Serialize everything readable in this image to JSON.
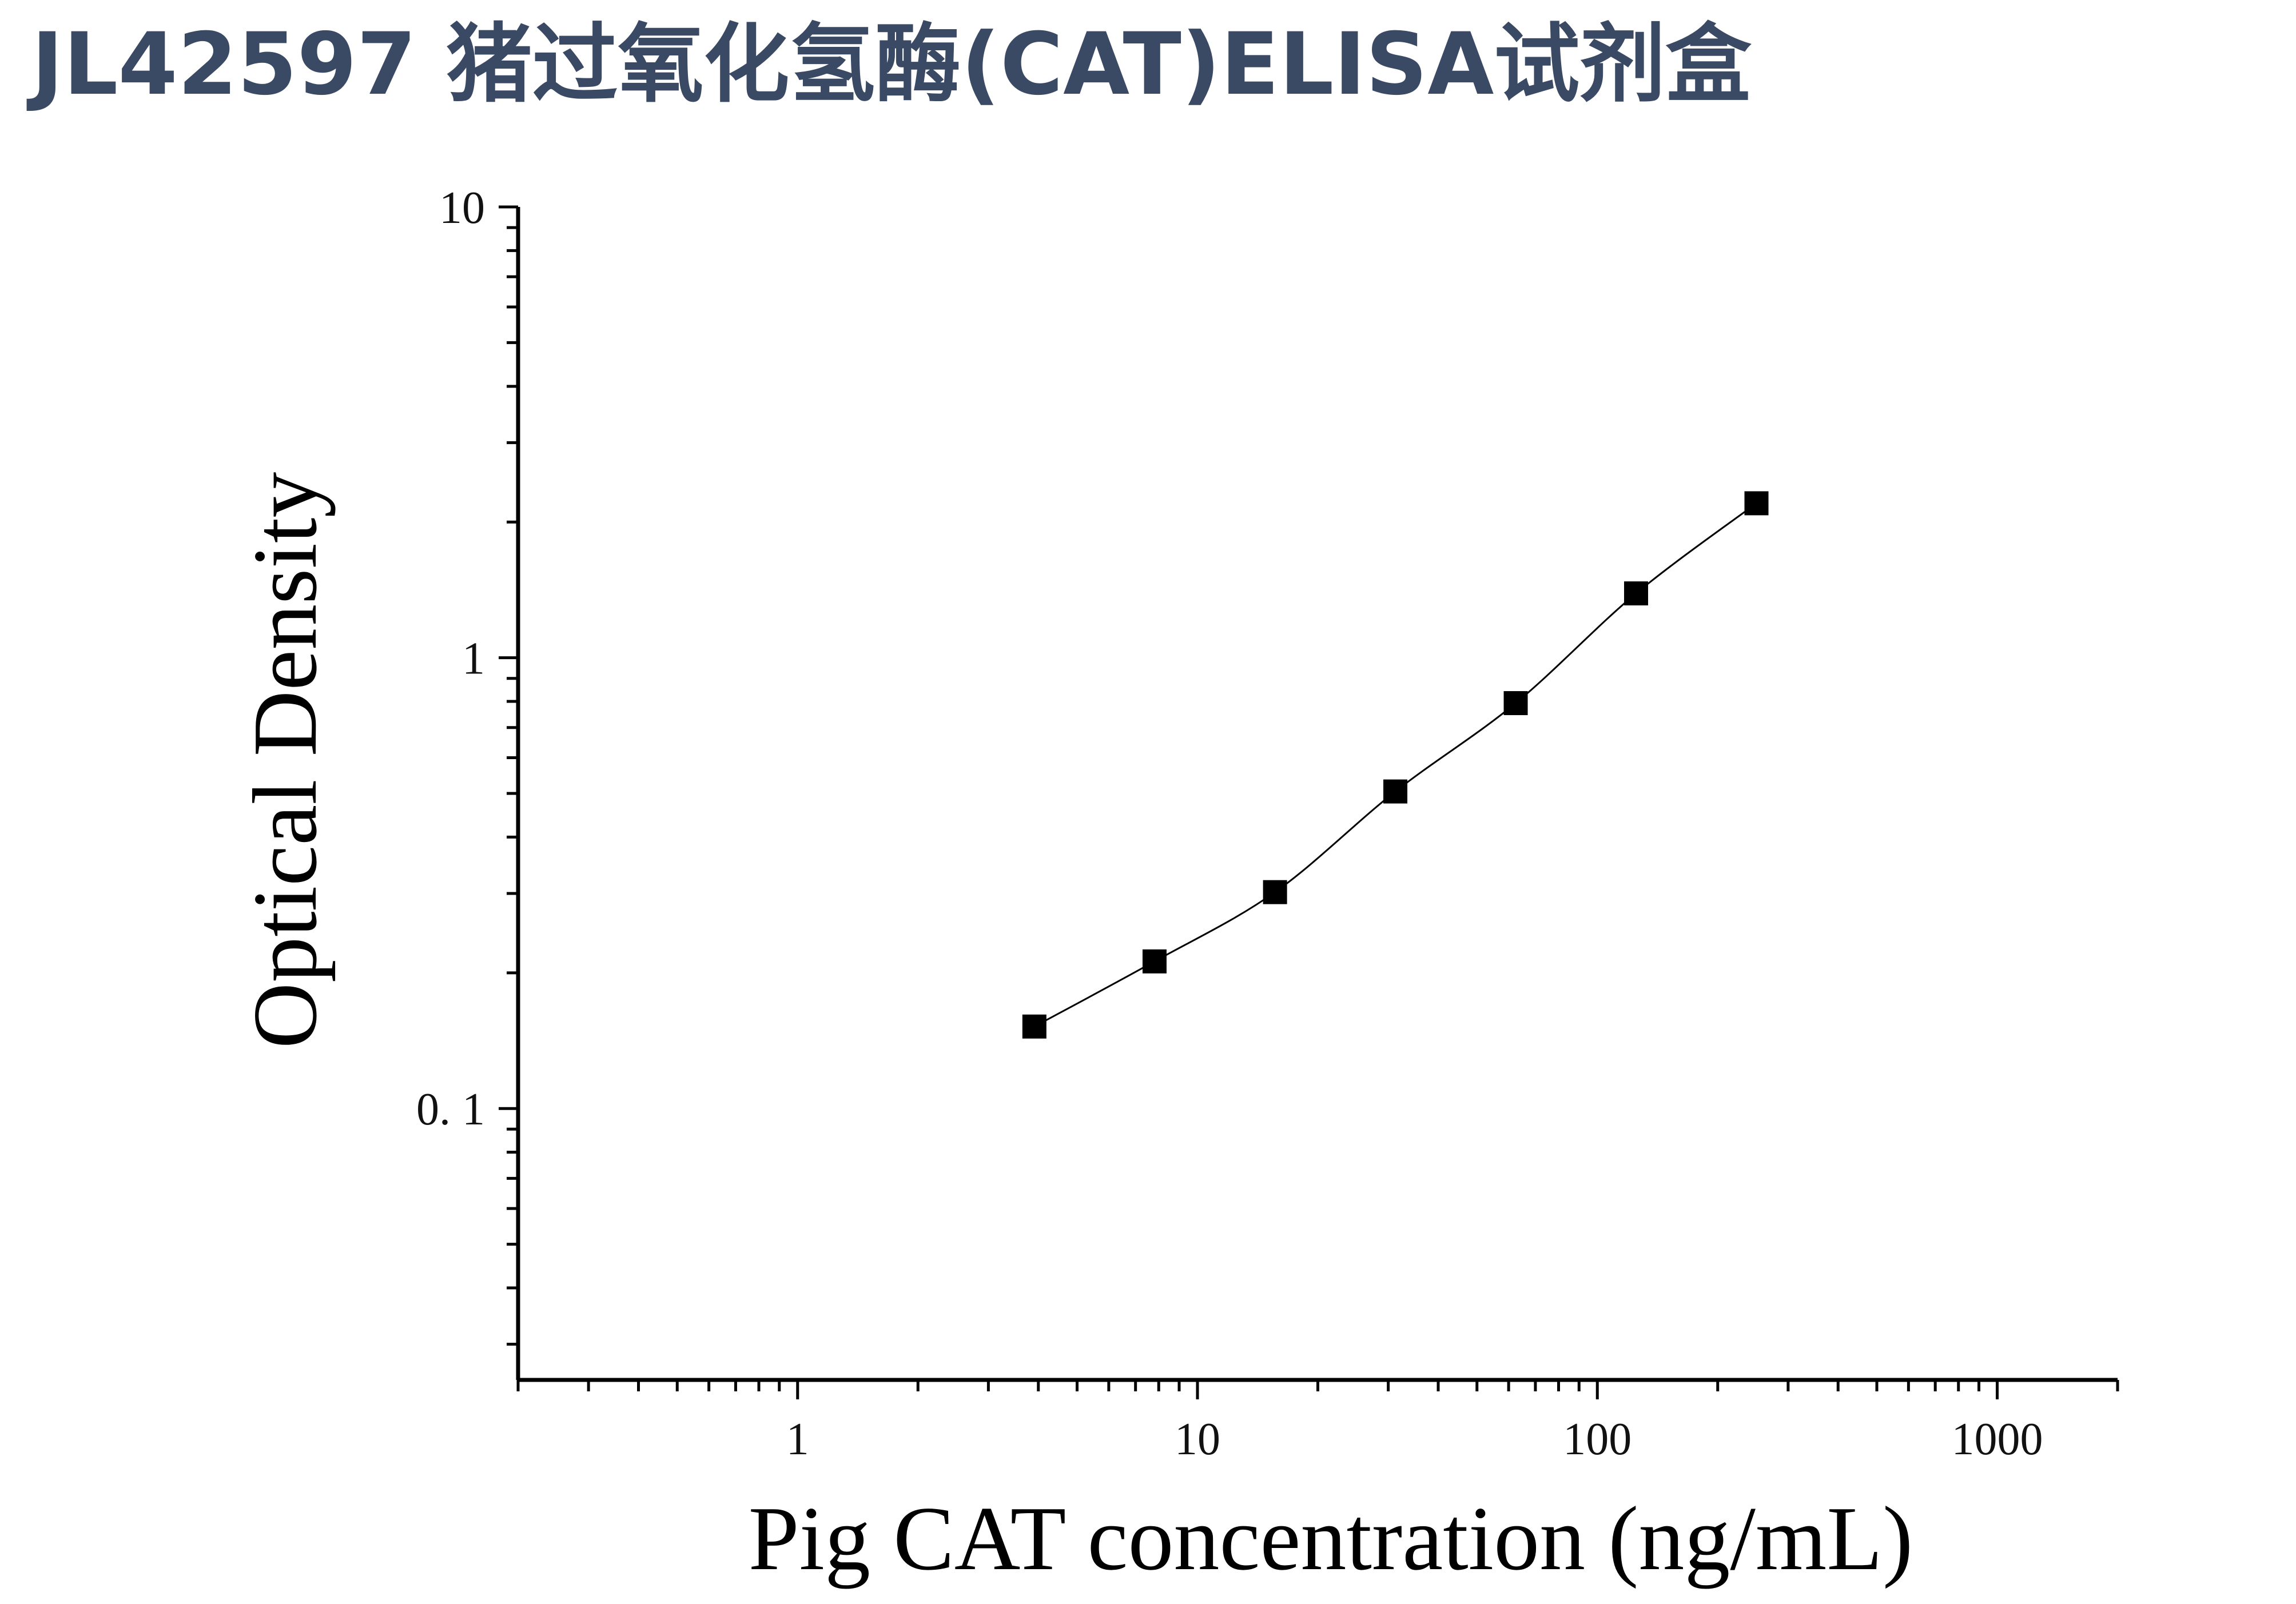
{
  "title": "JL42597 猪过氧化氢酶(CAT)ELISA试剂盒",
  "chart_data": {
    "type": "scatter",
    "xlabel": "Pig CAT concentration (ng/mL)",
    "ylabel": "Optical Density",
    "x_scale": "log",
    "y_scale": "log",
    "xlim": [
      0.2,
      2000
    ],
    "ylim": [
      0.025,
      10
    ],
    "x_ticks": [
      {
        "value": 1,
        "label": "1"
      },
      {
        "value": 10,
        "label": "10"
      },
      {
        "value": 100,
        "label": "100"
      },
      {
        "value": 1000,
        "label": "1000"
      }
    ],
    "y_ticks": [
      {
        "value": 0.1,
        "label": "0. 1"
      },
      {
        "value": 1,
        "label": "1"
      },
      {
        "value": 10,
        "label": "10"
      }
    ],
    "grid": false,
    "legend": "none",
    "series": [
      {
        "marker": "square",
        "color": "#000000",
        "points": [
          {
            "x": 3.91,
            "y": 0.152
          },
          {
            "x": 7.81,
            "y": 0.212
          },
          {
            "x": 15.63,
            "y": 0.302
          },
          {
            "x": 31.25,
            "y": 0.505
          },
          {
            "x": 62.5,
            "y": 0.793
          },
          {
            "x": 125,
            "y": 1.389
          },
          {
            "x": 250,
            "y": 2.201
          }
        ],
        "fit_curve": true
      }
    ]
  }
}
